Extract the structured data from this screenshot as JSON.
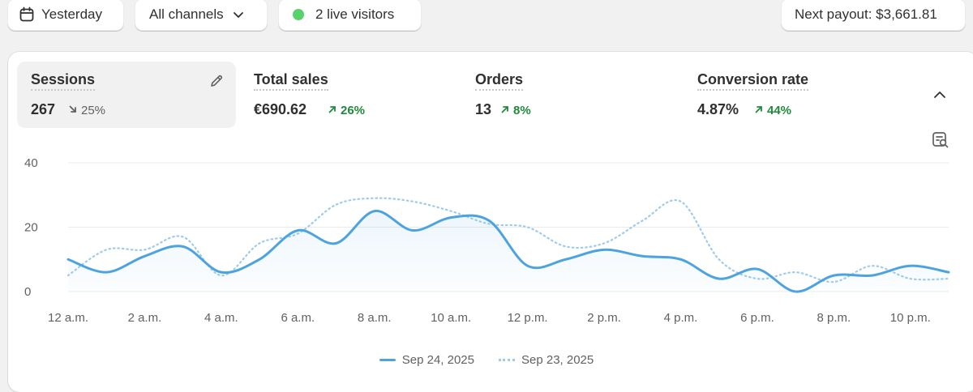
{
  "toolbar": {
    "date_label": "Yesterday",
    "channels_label": "All channels",
    "live_label": "2 live visitors",
    "payout_label": "Next payout: $3,661.81"
  },
  "metrics": [
    {
      "label": "Sessions",
      "value": "267",
      "delta": "25%",
      "direction": "down",
      "active": true
    },
    {
      "label": "Total sales",
      "value": "€690.62",
      "delta": "26%",
      "direction": "up",
      "active": false
    },
    {
      "label": "Orders",
      "value": "13",
      "delta": "8%",
      "direction": "up",
      "active": false
    },
    {
      "label": "Conversion rate",
      "value": "4.87%",
      "delta": "44%",
      "direction": "up",
      "active": false
    }
  ],
  "colors": {
    "series_current": "#4da3e0",
    "series_previous": "#9ccbef",
    "live_dot": "#5ad26b",
    "up": "#1f8a3b"
  },
  "chart_data": {
    "type": "line",
    "x_labels": [
      "12 a.m.",
      "2 a.m.",
      "4 a.m.",
      "6 a.m.",
      "8 a.m.",
      "10 a.m.",
      "12 p.m.",
      "2 p.m.",
      "4 p.m.",
      "6 p.m.",
      "8 p.m.",
      "10 p.m."
    ],
    "y_ticks": [
      0,
      20,
      40
    ],
    "ylim": [
      0,
      40
    ],
    "series": [
      {
        "name": "Sep 24, 2025",
        "style": "solid",
        "values": [
          10,
          6,
          11,
          14,
          6,
          10,
          19,
          15,
          25,
          19,
          23,
          22,
          8,
          10,
          13,
          11,
          10,
          4,
          7,
          0,
          5,
          5,
          8,
          6
        ]
      },
      {
        "name": "Sep 23, 2025",
        "style": "dotted",
        "values": [
          5,
          13,
          13,
          17,
          5,
          15,
          18,
          27,
          29,
          28,
          25,
          21,
          20,
          14,
          15,
          22,
          28,
          10,
          4,
          6,
          3,
          8,
          4,
          4
        ]
      }
    ]
  }
}
